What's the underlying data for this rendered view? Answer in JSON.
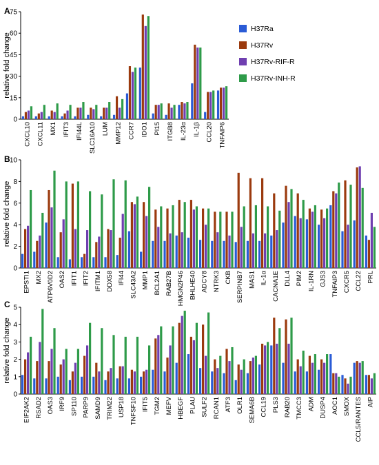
{
  "colors": {
    "H37Ra": "#2a5bd6",
    "H37Rv": "#9b3a0e",
    "H37Rv-RIF-R": "#6f3fb0",
    "H37Rv-INH-R": "#2e9b49"
  },
  "chart_data": [
    {
      "type": "bar",
      "panel": "A",
      "ylabel": "relative fold change",
      "ylim": [
        0,
        75
      ],
      "yticks": [
        0,
        15,
        30,
        45,
        60,
        75
      ],
      "categories": [
        "CXCL10",
        "CXCL11",
        "MX1",
        "IFIT3",
        "IFI44L",
        "SLC16A10",
        "LUM",
        "MMP12",
        "CCR7",
        "IDO1",
        "PI15",
        "ITGB8",
        "IL-23α",
        "IL-1β",
        "CCL20",
        "TNFAIP6"
      ],
      "series": [
        {
          "name": "H37Ra",
          "values": [
            2,
            2,
            2,
            2,
            2,
            3,
            2,
            3,
            18,
            36,
            4,
            3,
            10,
            25,
            5,
            20
          ]
        },
        {
          "name": "H37Rv",
          "values": [
            5,
            4,
            6,
            4,
            8,
            8,
            8,
            16,
            37,
            73,
            10,
            11,
            12,
            52,
            19,
            22
          ]
        },
        {
          "name": "H37Rv-RIF-R",
          "values": [
            6,
            5,
            5,
            6,
            8,
            7,
            8,
            8,
            33,
            65,
            10,
            8,
            11,
            50,
            19,
            22
          ]
        },
        {
          "name": "H37Rv-INH-R",
          "values": [
            9,
            10,
            11,
            10,
            12,
            10,
            12,
            14,
            36,
            72,
            11,
            10,
            12,
            50,
            20,
            23
          ]
        }
      ]
    },
    {
      "type": "bar",
      "panel": "B",
      "ylabel": "relative fold change",
      "ylim": [
        0,
        10
      ],
      "yticks": [
        0,
        2,
        4,
        6,
        8,
        10
      ],
      "categories": [
        "EPSTI1",
        "MX2",
        "ATP6V0D2",
        "OAS2",
        "IFIT1",
        "IFIT2",
        "IFITM1",
        "DDX58",
        "IFI44",
        "SLC43A2",
        "MMP1",
        "BCL2A1",
        "RAB27B",
        "HMGN2P46",
        "BHLHE40",
        "ADCY8",
        "NTRK3",
        "CKB",
        "SERPINB7",
        "MAS1",
        "IL-1α",
        "CACNA1E",
        "DLL4",
        "PIM2",
        "IL-1RN",
        "GJS3",
        "TNFAIP3",
        "CXCR5",
        "CCL22",
        "PRL"
      ],
      "series": [
        {
          "name": "H37Ra",
          "values": [
            1.3,
            1.5,
            4.2,
            1.0,
            0.8,
            1.0,
            1.0,
            1.0,
            1.2,
            3.4,
            1.5,
            2.5,
            2.5,
            3.0,
            2.8,
            2.6,
            2.5,
            2.5,
            2.4,
            2.5,
            2.5,
            3.0,
            4.2,
            4.8,
            4.5,
            4.0,
            5.8,
            3.4,
            4.4,
            3.0
          ]
        },
        {
          "name": "H37Rv",
          "values": [
            3.6,
            2.5,
            7.2,
            3.3,
            7.8,
            1.3,
            2.4,
            3.6,
            2.8,
            6.1,
            6.1,
            5.4,
            5.5,
            6.3,
            6.3,
            5.5,
            5.2,
            5.2,
            8.8,
            8.3,
            8.3,
            6.9,
            7.6,
            6.9,
            5.5,
            5.4,
            7.1,
            8.1,
            9.3,
            2.6
          ]
        },
        {
          "name": "H37Rv-RIF-R",
          "values": [
            3.9,
            3.0,
            5.6,
            4.5,
            3.6,
            3.5,
            2.9,
            3.5,
            5.0,
            5.9,
            4.8,
            3.8,
            3.2,
            3.3,
            5.4,
            4.0,
            3.3,
            3.0,
            3.8,
            3.2,
            3.2,
            3.5,
            6.1,
            4.6,
            5.2,
            4.6,
            6.9,
            4.0,
            9.4,
            5.1
          ]
        },
        {
          "name": "H37Rv-INH-R",
          "values": [
            7.2,
            5.1,
            9.0,
            8.0,
            8.0,
            7.1,
            6.8,
            8.2,
            8.1,
            6.6,
            7.5,
            5.7,
            5.8,
            6.1,
            5.7,
            5.5,
            5.2,
            5.2,
            5.7,
            5.8,
            5.7,
            5.3,
            7.3,
            6.3,
            5.8,
            5.5,
            7.9,
            7.7,
            7.4,
            3.8
          ]
        }
      ]
    },
    {
      "type": "bar",
      "panel": "C",
      "ylabel": "relative fold change",
      "ylim": [
        0,
        5
      ],
      "yticks": [
        0,
        1,
        2,
        3,
        4,
        5
      ],
      "categories": [
        "EIF2AK2",
        "RSAD2",
        "OAS3",
        "IRF9",
        "SP110",
        "PARP9",
        "SAMD9",
        "TRIM22",
        "USP18",
        "TNFSF10",
        "IFIT5",
        "TGM2",
        "MEFV",
        "HBEGF",
        "PLAU",
        "SULF2",
        "RCAN1",
        "ATF3",
        "OLR1",
        "SEMA6B",
        "CCL19",
        "PLS3",
        "RAB20",
        "TMCC3",
        "ADM",
        "DUSP4",
        "AOC1",
        "SMOX",
        "CCL5/RANTES",
        "AIP"
      ],
      "series": [
        {
          "name": "H37Ra",
          "values": [
            1.1,
            0.9,
            0.9,
            1.0,
            0.8,
            1.0,
            1.0,
            0.8,
            0.9,
            0.9,
            1.0,
            1.4,
            1.3,
            1.8,
            2.3,
            1.5,
            1.3,
            1.2,
            0.8,
            1.2,
            1.7,
            2.8,
            1.8,
            1.3,
            1.3,
            1.4,
            2.3,
            1.1,
            1.8,
            1.1
          ]
        },
        {
          "name": "H37Rv",
          "values": [
            2.0,
            1.9,
            1.9,
            1.7,
            1.3,
            2.2,
            1.8,
            1.3,
            1.6,
            1.4,
            1.3,
            3.2,
            2.1,
            4.1,
            3.3,
            4.0,
            2.0,
            2.6,
            1.7,
            1.9,
            2.9,
            4.4,
            4.3,
            2.0,
            2.2,
            2.0,
            1.2,
            0.9,
            1.9,
            1.1
          ]
        },
        {
          "name": "H37Rv-RIF-R",
          "values": [
            2.4,
            3.0,
            2.6,
            2.0,
            1.8,
            2.8,
            1.3,
            1.5,
            1.6,
            1.3,
            1.4,
            3.4,
            2.8,
            4.5,
            3.1,
            2.2,
            1.5,
            1.9,
            1.4,
            2.1,
            2.8,
            2.9,
            2.9,
            1.6,
            1.8,
            1.8,
            1.2,
            0.6,
            1.8,
            0.9
          ]
        },
        {
          "name": "H37Rv-INH-R",
          "values": [
            3.3,
            4.9,
            3.8,
            2.6,
            2.6,
            4.1,
            3.8,
            3.4,
            3.3,
            3.3,
            2.8,
            3.9,
            3.9,
            4.8,
            4.1,
            4.7,
            2.2,
            2.7,
            2.0,
            2.2,
            3.0,
            3.8,
            4.4,
            2.5,
            2.3,
            2.3,
            1.0,
            1.0,
            1.9,
            1.2
          ]
        }
      ]
    }
  ]
}
